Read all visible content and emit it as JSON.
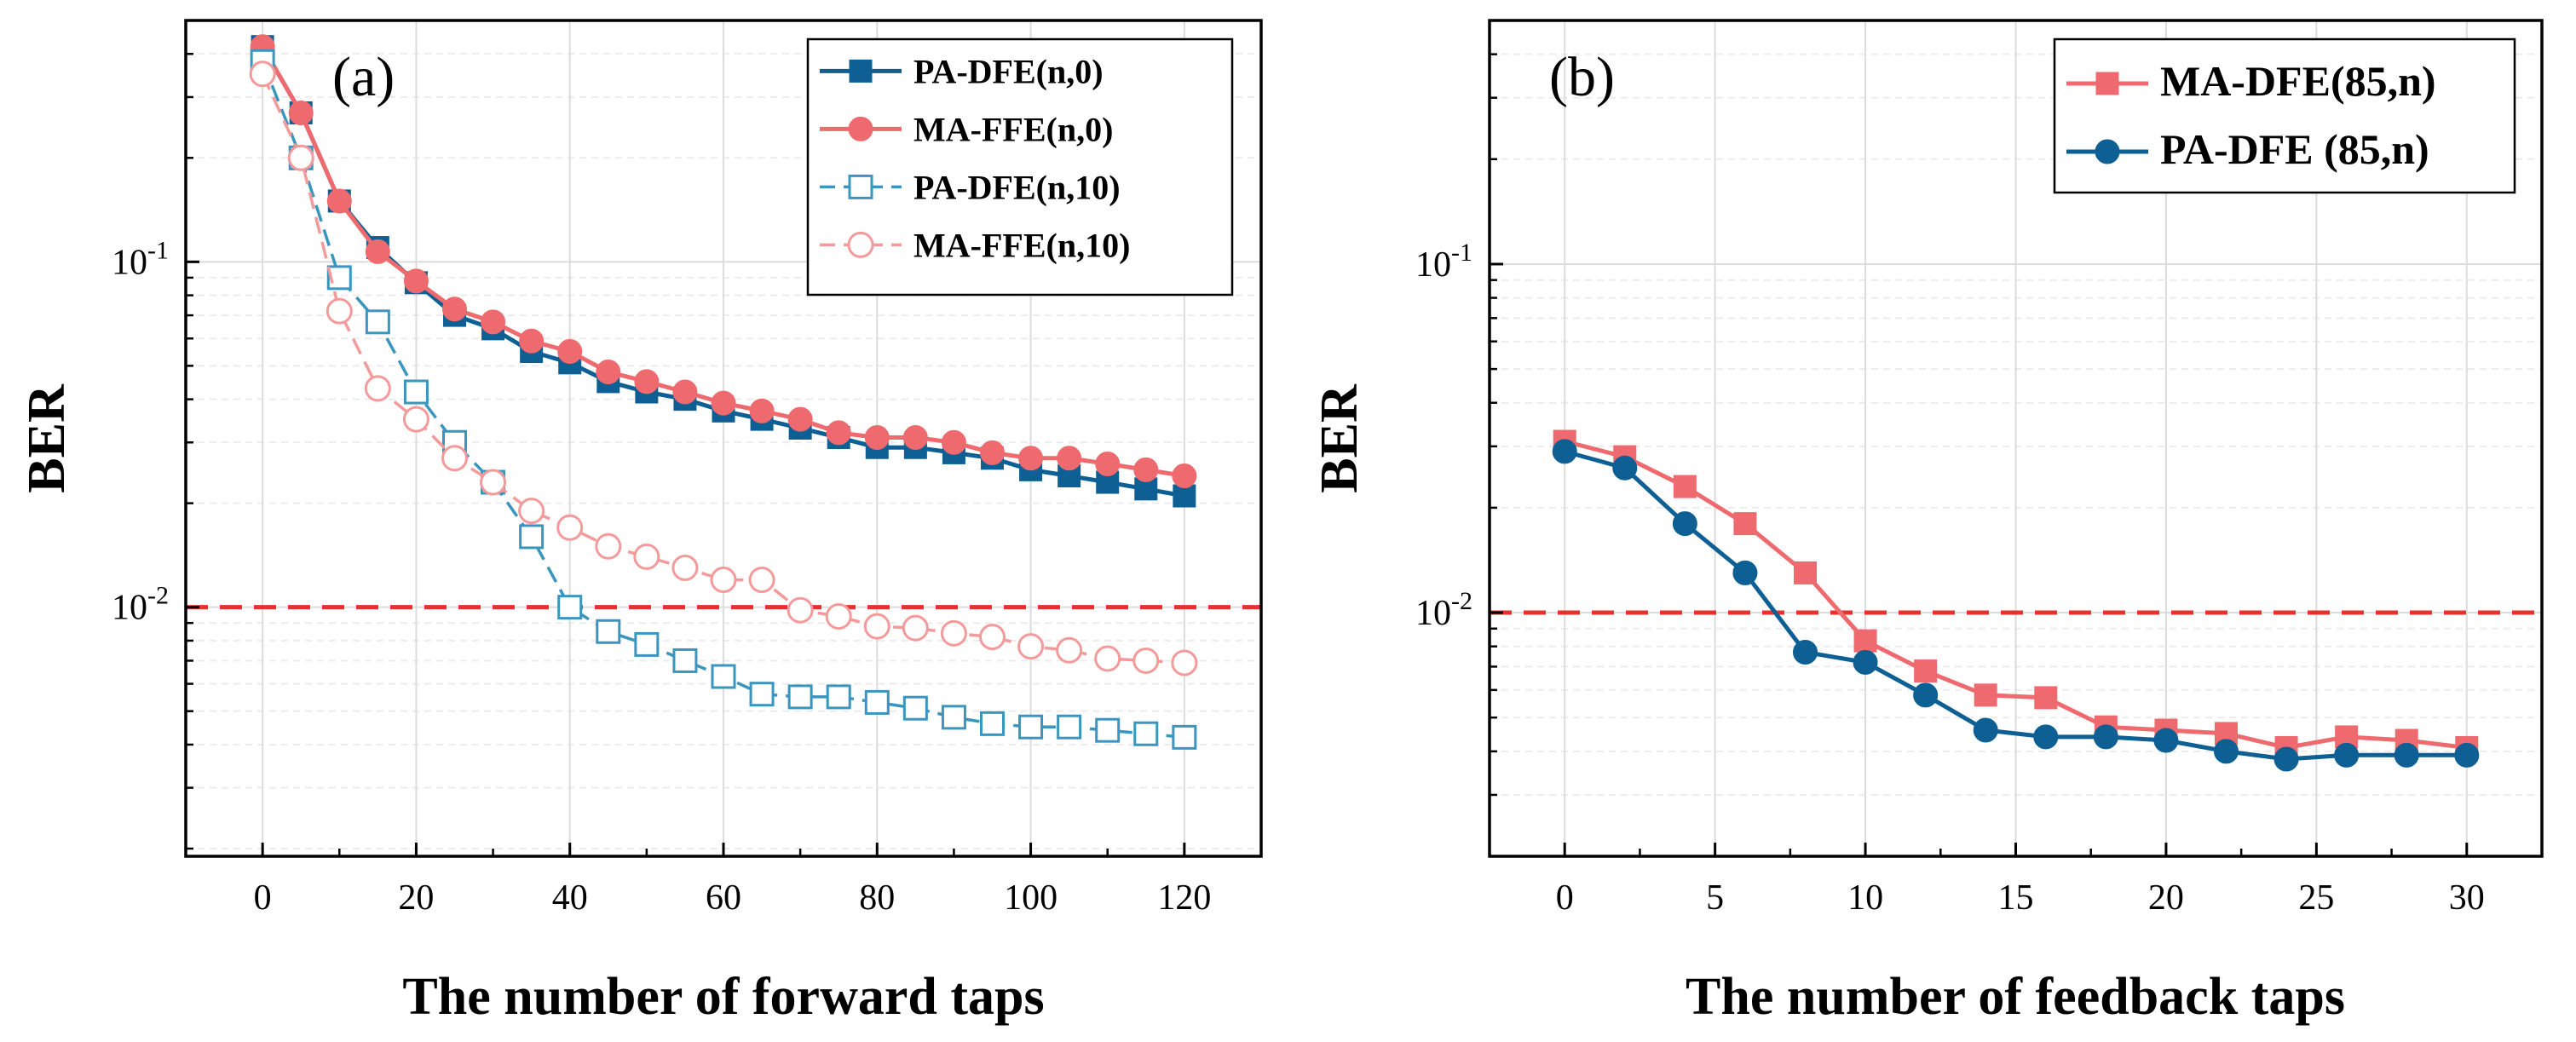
{
  "colors": {
    "blue": "#0d5f94",
    "blue_light": "#3a95bf",
    "red": "#ef6a6e",
    "red_light": "#f49a9b",
    "threshold": "#e8302c",
    "grid": "#dcdcdc",
    "grid_minor": "#ececec",
    "axis": "#000000"
  },
  "chart_data": [
    {
      "panel": "(a)",
      "type": "line",
      "yscale": "log",
      "xlabel": "The number of forward taps",
      "ylabel": "BER",
      "xlim": [
        -10,
        130
      ],
      "ylim": [
        0.0019,
        0.5
      ],
      "xticks": [
        0,
        20,
        40,
        60,
        80,
        100,
        120
      ],
      "yticks": [
        {
          "value": 0.1,
          "mantissa": "10",
          "exp": "-1"
        },
        {
          "value": 0.01,
          "mantissa": "10",
          "exp": "-2"
        }
      ],
      "threshold": 0.01,
      "legend_position": "top-right",
      "grid": true,
      "x": [
        0,
        5,
        10,
        15,
        20,
        25,
        30,
        35,
        40,
        45,
        50,
        55,
        60,
        65,
        70,
        75,
        80,
        85,
        90,
        95,
        100,
        105,
        110,
        115,
        120
      ],
      "series": [
        {
          "name": "PA-DFE(n,0)",
          "color": "#0d5f94",
          "marker": "square",
          "filled": true,
          "dashed": false,
          "values": [
            0.42,
            0.27,
            0.15,
            0.11,
            0.087,
            0.07,
            0.064,
            0.055,
            0.051,
            0.045,
            0.042,
            0.04,
            0.037,
            0.035,
            0.033,
            0.031,
            0.029,
            0.029,
            0.028,
            0.027,
            0.025,
            0.024,
            0.023,
            0.022,
            0.021
          ]
        },
        {
          "name": "MA-FFE(n,0)",
          "color": "#ef6a6e",
          "marker": "circle",
          "filled": true,
          "dashed": false,
          "values": [
            0.42,
            0.27,
            0.15,
            0.107,
            0.088,
            0.073,
            0.067,
            0.059,
            0.055,
            0.048,
            0.045,
            0.042,
            0.039,
            0.037,
            0.035,
            0.032,
            0.031,
            0.031,
            0.03,
            0.028,
            0.027,
            0.027,
            0.026,
            0.025,
            0.024
          ]
        },
        {
          "name": "PA-DFE(n,10)",
          "color": "#3a95bf",
          "marker": "square",
          "filled": false,
          "dashed": true,
          "values": [
            0.38,
            0.2,
            0.09,
            0.067,
            0.042,
            0.03,
            0.023,
            0.016,
            0.01,
            0.0085,
            0.0078,
            0.007,
            0.0063,
            0.0056,
            0.0055,
            0.0055,
            0.0053,
            0.0051,
            0.0048,
            0.0046,
            0.0045,
            0.0045,
            0.0044,
            0.0043,
            0.0042
          ]
        },
        {
          "name": "MA-FFE(n,10)",
          "color": "#f49a9b",
          "marker": "circle",
          "filled": false,
          "dashed": true,
          "values": [
            0.35,
            0.2,
            0.072,
            0.043,
            0.035,
            0.027,
            0.023,
            0.019,
            0.017,
            0.015,
            0.014,
            0.013,
            0.012,
            0.012,
            0.0098,
            0.0094,
            0.0088,
            0.0087,
            0.0084,
            0.0082,
            0.0077,
            0.0075,
            0.0071,
            0.007,
            0.0069
          ]
        }
      ]
    },
    {
      "panel": "(b)",
      "type": "line",
      "yscale": "log",
      "xlabel": "The number of feedback taps",
      "ylabel": "BER",
      "xlim": [
        -2.5,
        32.5
      ],
      "ylim": [
        0.002,
        0.5
      ],
      "xticks": [
        0,
        5,
        10,
        15,
        20,
        25,
        30
      ],
      "yticks": [
        {
          "value": 0.1,
          "mantissa": "10",
          "exp": "-1"
        },
        {
          "value": 0.01,
          "mantissa": "10",
          "exp": "-2"
        }
      ],
      "threshold": 0.01,
      "legend_position": "top-right",
      "grid": true,
      "x": [
        0,
        2,
        4,
        6,
        8,
        10,
        12,
        14,
        16,
        18,
        20,
        22,
        24,
        26,
        28,
        30
      ],
      "series": [
        {
          "name": "MA-DFE(85,n)",
          "color": "#ef6a6e",
          "marker": "square",
          "filled": true,
          "dashed": false,
          "values": [
            0.031,
            0.028,
            0.023,
            0.018,
            0.013,
            0.0083,
            0.0068,
            0.0058,
            0.0057,
            0.0047,
            0.0046,
            0.0045,
            0.0041,
            0.0044,
            0.0043,
            0.0041
          ]
        },
        {
          "name": "PA-DFE (85,n)",
          "color": "#0d5f94",
          "marker": "circle",
          "filled": true,
          "dashed": false,
          "values": [
            0.029,
            0.026,
            0.018,
            0.013,
            0.0077,
            0.0072,
            0.0058,
            0.0046,
            0.0044,
            0.0044,
            0.0043,
            0.004,
            0.0038,
            0.0039,
            0.0039,
            0.0039
          ]
        }
      ]
    }
  ]
}
